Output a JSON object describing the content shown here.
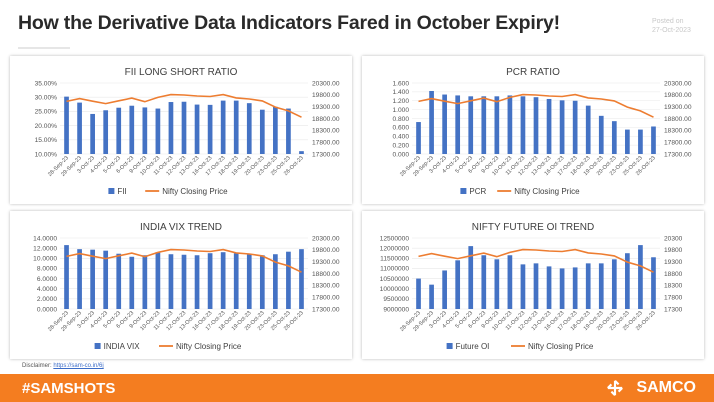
{
  "header": {
    "title": "How the Derivative Data Indicators Fared in October Expiry!",
    "posted_label": "Posted on",
    "posted_date": "27-Oct-2023"
  },
  "footer": {
    "hashtag": "#SAMSHOTS",
    "brand": "SAMCO"
  },
  "disclaimer": {
    "label": "Disclaimer:",
    "link_text": "https://sam-co.in/6j"
  },
  "colors": {
    "bar": "#4472c4",
    "line": "#ed7d31",
    "footer": "#f47d20"
  },
  "chart_data": [
    {
      "type": "bar",
      "title": "FII LONG SHORT RATIO",
      "categories": [
        "28-Sep-23",
        "29-Sep-23",
        "3-Oct-23",
        "4-Oct-23",
        "5-Oct-23",
        "6-Oct-23",
        "9-Oct-23",
        "10-Oct-23",
        "11-Oct-23",
        "12-Oct-23",
        "13-Oct-23",
        "16-Oct-23",
        "17-Oct-23",
        "18-Oct-23",
        "19-Oct-23",
        "20-Oct-23",
        "23-Oct-23",
        "25-Oct-23",
        "26-Oct-23"
      ],
      "left_axis": {
        "ticks": [
          "35.00%",
          "30.00%",
          "25.00%",
          "20.00%",
          "15.00%",
          "10.00%"
        ],
        "min": 10,
        "max": 35
      },
      "right_axis": {
        "ticks": [
          "20300.00",
          "19800.00",
          "19300.00",
          "18800.00",
          "18300.00",
          "17800.00",
          "17300.00"
        ],
        "min": 17300,
        "max": 20300
      },
      "series": [
        {
          "name": "FII",
          "kind": "bar",
          "values": [
            30.2,
            28.1,
            24.1,
            25.4,
            26.3,
            27.0,
            26.4,
            26.0,
            28.3,
            28.4,
            27.4,
            27.3,
            28.8,
            28.8,
            27.9,
            25.6,
            26.6,
            26.0,
            11.0
          ]
        },
        {
          "name": "Nifty Closing Price",
          "kind": "line",
          "values": [
            19524,
            19640,
            19530,
            19430,
            19550,
            19660,
            19510,
            19690,
            19810,
            19795,
            19750,
            19731,
            19811,
            19671,
            19624,
            19543,
            19282,
            19122,
            18857
          ]
        }
      ]
    },
    {
      "type": "bar",
      "title": "PCR RATIO",
      "categories": [
        "28-Sep-23",
        "29-Sep-23",
        "3-Oct-23",
        "4-Oct-23",
        "5-Oct-23",
        "6-Oct-23",
        "9-Oct-23",
        "10-Oct-23",
        "11-Oct-23",
        "12-Oct-23",
        "13-Oct-23",
        "16-Oct-23",
        "17-Oct-23",
        "18-Oct-23",
        "19-Oct-23",
        "20-Oct-23",
        "23-Oct-23",
        "25-Oct-23",
        "26-Oct-23"
      ],
      "left_axis": {
        "ticks": [
          "1.600",
          "1.400",
          "1.200",
          "1.000",
          "0.800",
          "0.600",
          "0.400",
          "0.200",
          "0.000"
        ],
        "min": 0,
        "max": 1.6
      },
      "right_axis": {
        "ticks": [
          "20300.00",
          "19800.00",
          "19300.00",
          "18800.00",
          "18300.00",
          "17800.00",
          "17300.00"
        ],
        "min": 17300,
        "max": 20300
      },
      "series": [
        {
          "name": "PCR",
          "kind": "bar",
          "values": [
            0.72,
            1.42,
            1.34,
            1.32,
            1.3,
            1.3,
            1.3,
            1.32,
            1.3,
            1.28,
            1.24,
            1.21,
            1.2,
            1.09,
            0.86,
            0.74,
            0.55,
            0.55,
            0.62
          ]
        },
        {
          "name": "Nifty Closing Price",
          "kind": "line",
          "values": [
            19524,
            19640,
            19530,
            19430,
            19550,
            19660,
            19510,
            19690,
            19810,
            19795,
            19750,
            19731,
            19811,
            19671,
            19624,
            19543,
            19282,
            19122,
            18857
          ]
        }
      ]
    },
    {
      "type": "bar",
      "title": "INDIA VIX TREND",
      "categories": [
        "28-Sep-23",
        "29-Sep-23",
        "3-Oct-23",
        "4-Oct-23",
        "5-Oct-23",
        "6-Oct-23",
        "9-Oct-23",
        "10-Oct-23",
        "11-Oct-23",
        "12-Oct-23",
        "13-Oct-23",
        "16-Oct-23",
        "17-Oct-23",
        "18-Oct-23",
        "19-Oct-23",
        "20-Oct-23",
        "23-Oct-23",
        "25-Oct-23",
        "26-Oct-23"
      ],
      "left_axis": {
        "ticks": [
          "14.0000",
          "12.0000",
          "10.0000",
          "8.0000",
          "6.0000",
          "4.0000",
          "2.0000",
          "0.0000"
        ],
        "min": 0,
        "max": 14
      },
      "right_axis": {
        "ticks": [
          "20300.00",
          "19800.00",
          "19300.00",
          "18800.00",
          "18300.00",
          "17800.00",
          "17300.00"
        ],
        "min": 17300,
        "max": 20300
      },
      "series": [
        {
          "name": "INDIA VIX",
          "kind": "bar",
          "values": [
            12.6,
            11.8,
            11.7,
            11.5,
            10.9,
            10.3,
            10.6,
            11.2,
            10.8,
            10.7,
            10.6,
            11.0,
            11.2,
            11.0,
            10.9,
            10.6,
            10.8,
            11.3,
            11.8
          ]
        },
        {
          "name": "Nifty Closing Price",
          "kind": "line",
          "values": [
            19524,
            19640,
            19530,
            19430,
            19550,
            19660,
            19510,
            19690,
            19810,
            19795,
            19750,
            19731,
            19811,
            19671,
            19624,
            19543,
            19282,
            19122,
            18857
          ]
        }
      ]
    },
    {
      "type": "bar",
      "title": "NIFTY FUTURE OI TREND",
      "categories": [
        "28-Sep-23",
        "29-Sep-23",
        "3-Oct-23",
        "4-Oct-23",
        "5-Oct-23",
        "6-Oct-23",
        "9-Oct-23",
        "10-Oct-23",
        "11-Oct-23",
        "12-Oct-23",
        "13-Oct-23",
        "16-Oct-23",
        "17-Oct-23",
        "18-Oct-23",
        "19-Oct-23",
        "20-Oct-23",
        "23-Oct-23",
        "25-Oct-23",
        "26-Oct-23"
      ],
      "left_axis": {
        "ticks": [
          "12500000",
          "12000000",
          "11500000",
          "11000000",
          "10500000",
          "10000000",
          "9500000",
          "9000000"
        ],
        "min": 9000000,
        "max": 12500000
      },
      "right_axis": {
        "ticks": [
          "20300",
          "19800",
          "19300",
          "18800",
          "18300",
          "17800",
          "17300"
        ],
        "min": 17300,
        "max": 20300
      },
      "series": [
        {
          "name": "Future OI",
          "kind": "bar",
          "values": [
            10500000,
            10200000,
            10900000,
            11400000,
            12100000,
            11650000,
            11450000,
            11650000,
            11200000,
            11250000,
            11100000,
            11000000,
            11050000,
            11250000,
            11250000,
            11450000,
            11750000,
            12150000,
            11550000
          ]
        },
        {
          "name": "Nifty Closing Price",
          "kind": "line",
          "values": [
            19524,
            19640,
            19530,
            19430,
            19550,
            19660,
            19510,
            19690,
            19810,
            19795,
            19750,
            19731,
            19811,
            19671,
            19624,
            19543,
            19282,
            19122,
            18857
          ]
        }
      ]
    }
  ]
}
